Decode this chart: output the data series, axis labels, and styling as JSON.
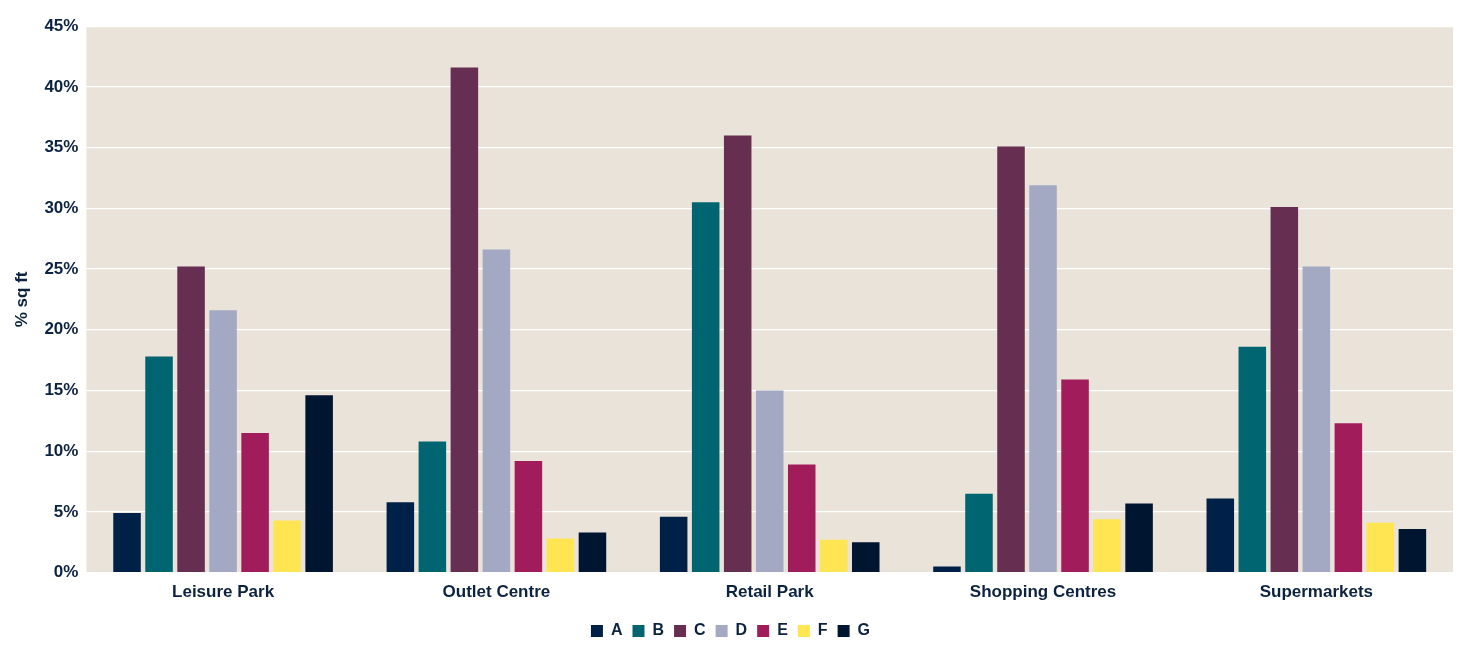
{
  "chart_data": {
    "type": "bar",
    "ylabel": "% sq ft",
    "categories": [
      "Leisure Park",
      "Outlet Centre",
      "Retail Park",
      "Shopping Centres",
      "Supermarkets"
    ],
    "series": [
      {
        "name": "A",
        "color": "#002147",
        "values": [
          4.9,
          5.8,
          4.6,
          0.5,
          6.1
        ]
      },
      {
        "name": "B",
        "color": "#006570",
        "values": [
          17.8,
          10.8,
          30.5,
          6.5,
          18.6
        ]
      },
      {
        "name": "C",
        "color": "#662e51",
        "values": [
          25.2,
          41.6,
          36.0,
          35.1,
          30.1
        ]
      },
      {
        "name": "D",
        "color": "#a3a8c3",
        "values": [
          21.6,
          26.6,
          15.0,
          31.9,
          25.2
        ]
      },
      {
        "name": "E",
        "color": "#a01c5b",
        "values": [
          11.5,
          9.2,
          8.9,
          15.9,
          12.3
        ]
      },
      {
        "name": "F",
        "color": "#ffe552",
        "values": [
          4.3,
          2.8,
          2.7,
          4.4,
          4.1
        ]
      },
      {
        "name": "G",
        "color": "#001530",
        "values": [
          14.6,
          3.3,
          2.5,
          5.7,
          3.6
        ]
      }
    ],
    "ylim": [
      0,
      45
    ],
    "yticks": [
      {
        "value": 0,
        "label": "0%"
      },
      {
        "value": 5,
        "label": "5%"
      },
      {
        "value": 10,
        "label": "10%"
      },
      {
        "value": 15,
        "label": "15%"
      },
      {
        "value": 20,
        "label": "20%"
      },
      {
        "value": 25,
        "label": "25%"
      },
      {
        "value": 30,
        "label": "30%"
      },
      {
        "value": 35,
        "label": "35%"
      },
      {
        "value": 40,
        "label": "40%"
      },
      {
        "value": 45,
        "label": "45%"
      }
    ],
    "grid": "y",
    "legend": "bottom"
  }
}
